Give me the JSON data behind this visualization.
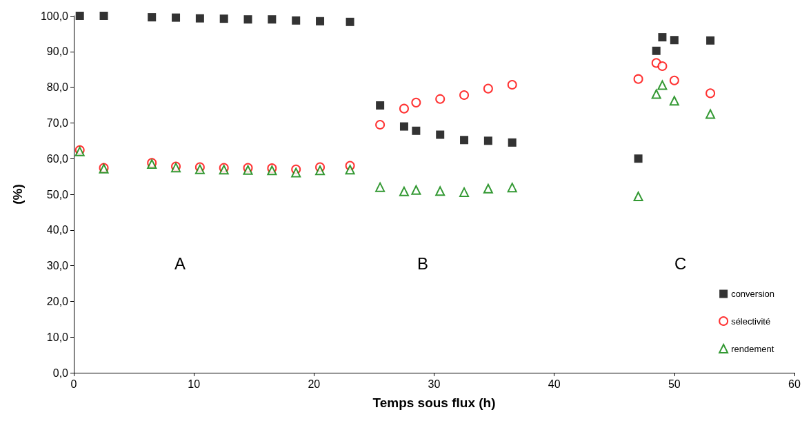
{
  "chart_data": {
    "type": "scatter",
    "xlabel": "Temps sous flux (h)",
    "ylabel": "(%)",
    "xlim": [
      0,
      60
    ],
    "xticks": [
      0,
      10,
      20,
      30,
      40,
      50,
      60
    ],
    "ylim": [
      0,
      100
    ],
    "yticks": [
      {
        "value": 0,
        "label": "0,0"
      },
      {
        "value": 10,
        "label": "10,0"
      },
      {
        "value": 20,
        "label": "20,0"
      },
      {
        "value": 30,
        "label": "30,0"
      },
      {
        "value": 40,
        "label": "40,0"
      },
      {
        "value": 50,
        "label": "50,0"
      },
      {
        "value": 60,
        "label": "60,0"
      },
      {
        "value": 70,
        "label": "70,0"
      },
      {
        "value": 80,
        "label": "80,0"
      },
      {
        "value": 90,
        "label": "90,0"
      },
      {
        "value": 100,
        "label": "100,0"
      }
    ],
    "x": [
      0.5,
      2.5,
      6.5,
      8.5,
      10.5,
      12.5,
      14.5,
      16.5,
      18.5,
      20.5,
      23,
      25.5,
      27.5,
      28.5,
      30.5,
      32.5,
      34.5,
      36.5,
      47,
      48.5,
      49,
      50,
      53
    ],
    "grid": false,
    "legend": "bottom right",
    "annotations": [
      "A",
      "B",
      "C"
    ],
    "series": [
      {
        "name": "conversion",
        "color": "#000000",
        "marker": "square",
        "values": [
          100,
          100,
          99.6,
          99.5,
          99.3,
          99.2,
          99.0,
          99.0,
          98.7,
          98.5,
          98.3,
          74.9,
          69.0,
          67.8,
          66.7,
          65.2,
          65.0,
          64.5,
          60.0,
          90.2,
          94.0,
          93.2,
          93.1
        ]
      },
      {
        "name": "sélectivité",
        "color": "#ff0000",
        "marker": "circle",
        "values": [
          62.4,
          57.4,
          58.8,
          57.8,
          57.6,
          57.4,
          57.4,
          57.3,
          57.0,
          57.6,
          58.0,
          69.5,
          74.0,
          75.7,
          76.7,
          77.8,
          79.6,
          80.7,
          82.3,
          86.8,
          85.9,
          81.9,
          78.3
        ]
      },
      {
        "name": "rendement",
        "color": "#008000",
        "marker": "triangle",
        "values": [
          62.0,
          57.2,
          58.5,
          57.5,
          57.0,
          56.9,
          56.8,
          56.7,
          56.1,
          56.7,
          56.9,
          52.0,
          50.8,
          51.2,
          50.9,
          50.6,
          51.6,
          51.9,
          49.4,
          78.1,
          80.6,
          76.2,
          72.5
        ]
      }
    ]
  }
}
